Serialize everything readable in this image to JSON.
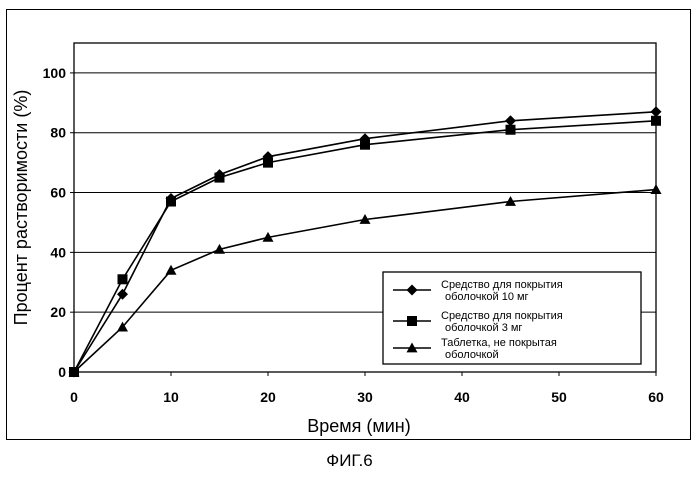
{
  "chart_data": {
    "type": "line",
    "title": "",
    "xlabel": "Время (мин)",
    "ylabel": "Процент растворимости (%)",
    "xlim": [
      0,
      60
    ],
    "ylim": [
      0,
      110
    ],
    "xticks": [
      0,
      10,
      20,
      30,
      40,
      50,
      60
    ],
    "yticks": [
      0,
      20,
      40,
      60,
      80,
      100
    ],
    "grid": "horizontal",
    "legend_position": "bottom-right",
    "series": [
      {
        "name_line1": "Средство для покрытия",
        "name_line2": "оболочкой 10 мг",
        "marker": "diamond",
        "x": [
          0,
          5,
          10,
          15,
          20,
          30,
          45,
          60
        ],
        "y": [
          0,
          26,
          58,
          66,
          72,
          78,
          84,
          87
        ]
      },
      {
        "name_line1": "Средство для покрытия",
        "name_line2": "оболочкой 3 мг",
        "marker": "square",
        "x": [
          0,
          5,
          10,
          15,
          20,
          30,
          45,
          60
        ],
        "y": [
          0,
          31,
          57,
          65,
          70,
          76,
          81,
          84
        ]
      },
      {
        "name_line1": "Таблетка, не покрытая",
        "name_line2": "оболочкой",
        "marker": "triangle",
        "x": [
          0,
          5,
          10,
          15,
          20,
          30,
          45,
          60
        ],
        "y": [
          0,
          15,
          34,
          41,
          45,
          51,
          57,
          61
        ]
      }
    ]
  },
  "caption": "ФИГ.6"
}
